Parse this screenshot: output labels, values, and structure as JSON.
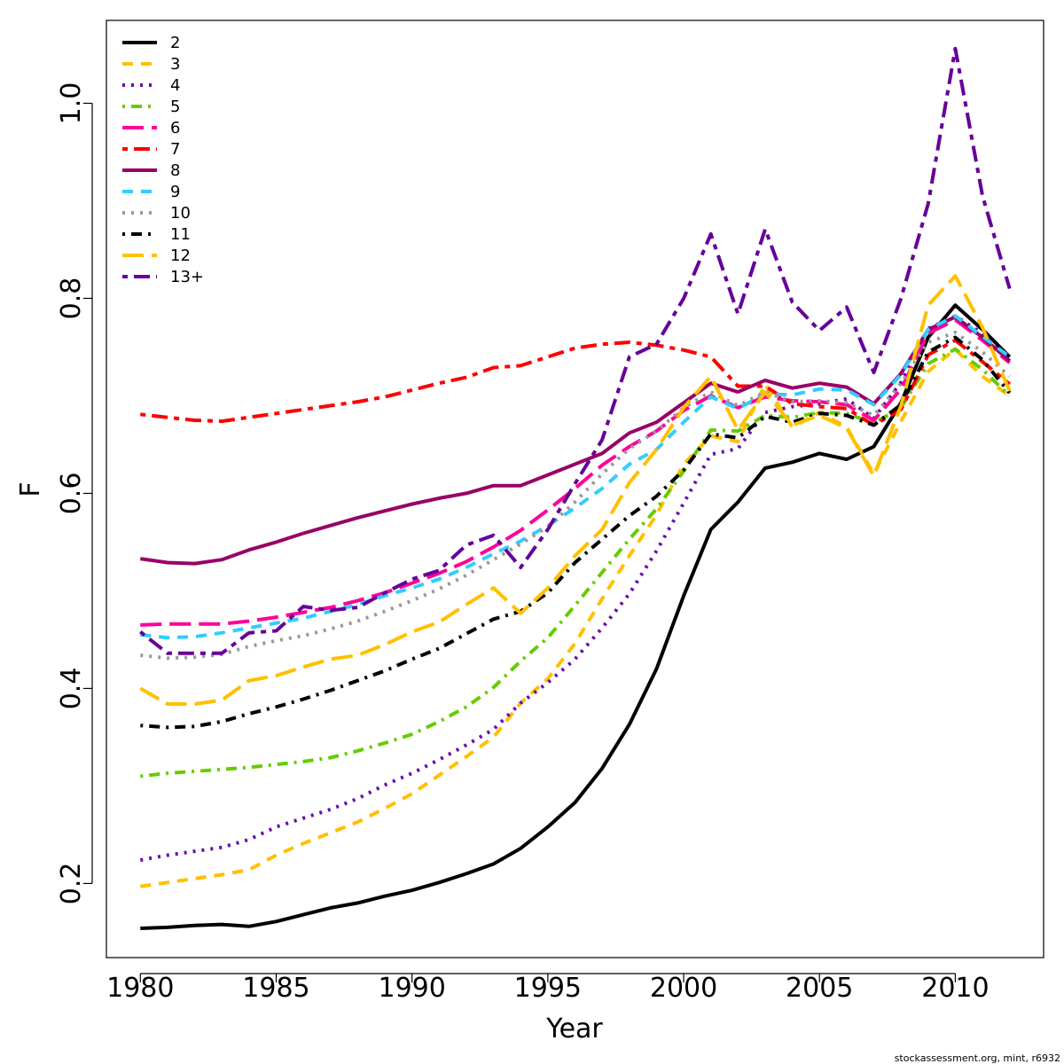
{
  "chart_data": {
    "type": "line",
    "title": "",
    "xlabel": "Year",
    "ylabel": "F",
    "xlim": [
      1978.75,
      1976.15
    ],
    "ylim": [
      0.124,
      1.085
    ],
    "x_ticks": [
      1980,
      1985,
      1990,
      1995,
      2000,
      2005,
      2010
    ],
    "y_ticks": [
      0.2,
      0.4,
      0.6,
      0.8,
      1.0
    ],
    "x_tick_labels": [
      "1980",
      "1985",
      "1990",
      "1995",
      "2000",
      "2005",
      "2010"
    ],
    "y_tick_labels": [
      "0.2",
      "0.4",
      "0.6",
      "0.8",
      "1.0"
    ],
    "legend_position": "top-left",
    "x": [
      1980,
      1981,
      1982,
      1983,
      1984,
      1985,
      1986,
      1987,
      1988,
      1989,
      1990,
      1991,
      1992,
      1993,
      1994,
      1995,
      1996,
      1997,
      1998,
      1999,
      2000,
      2001,
      2002,
      2003,
      2004,
      2005,
      2006,
      2007,
      2008,
      2009,
      2010,
      2011,
      2012
    ],
    "series": [
      {
        "name": "2",
        "color": "#000000",
        "dash": "solid",
        "values": [
          0.154,
          0.155,
          0.157,
          0.158,
          0.156,
          0.161,
          0.168,
          0.175,
          0.18,
          0.187,
          0.193,
          0.201,
          0.21,
          0.22,
          0.236,
          0.258,
          0.283,
          0.318,
          0.363,
          0.42,
          0.495,
          0.563,
          0.591,
          0.626,
          0.632,
          0.641,
          0.635,
          0.648,
          0.693,
          0.76,
          0.793,
          0.768,
          0.74
        ]
      },
      {
        "name": "3",
        "color": "#ffc000",
        "dash": "dashed",
        "values": [
          0.197,
          0.201,
          0.205,
          0.209,
          0.214,
          0.229,
          0.241,
          0.252,
          0.263,
          0.277,
          0.292,
          0.311,
          0.33,
          0.35,
          0.385,
          0.41,
          0.446,
          0.492,
          0.536,
          0.578,
          0.63,
          0.659,
          0.653,
          0.712,
          0.668,
          0.683,
          0.668,
          0.62,
          0.674,
          0.725,
          0.748,
          0.72,
          0.7
        ]
      },
      {
        "name": "4",
        "color": "#6a0dad",
        "dash": "dotted",
        "values": [
          0.224,
          0.229,
          0.233,
          0.237,
          0.245,
          0.258,
          0.267,
          0.276,
          0.287,
          0.301,
          0.313,
          0.327,
          0.342,
          0.358,
          0.385,
          0.406,
          0.43,
          0.462,
          0.497,
          0.541,
          0.59,
          0.64,
          0.646,
          0.683,
          0.689,
          0.692,
          0.697,
          0.677,
          0.714,
          0.769,
          0.782,
          0.764,
          0.735
        ]
      },
      {
        "name": "5",
        "color": "#66cc00",
        "dash": "dashdot",
        "values": [
          0.31,
          0.313,
          0.315,
          0.317,
          0.319,
          0.322,
          0.325,
          0.329,
          0.336,
          0.344,
          0.353,
          0.366,
          0.381,
          0.401,
          0.428,
          0.452,
          0.485,
          0.519,
          0.553,
          0.584,
          0.623,
          0.665,
          0.664,
          0.68,
          0.678,
          0.683,
          0.682,
          0.672,
          0.688,
          0.733,
          0.748,
          0.727,
          0.7
        ]
      },
      {
        "name": "6",
        "color": "#ff0099",
        "dash": "longdash",
        "values": [
          0.465,
          0.466,
          0.466,
          0.466,
          0.469,
          0.473,
          0.478,
          0.483,
          0.49,
          0.498,
          0.508,
          0.518,
          0.53,
          0.545,
          0.562,
          0.583,
          0.605,
          0.629,
          0.648,
          0.664,
          0.685,
          0.7,
          0.688,
          0.699,
          0.695,
          0.694,
          0.691,
          0.675,
          0.707,
          0.764,
          0.778,
          0.757,
          0.734
        ]
      },
      {
        "name": "7",
        "color": "#ff0000",
        "dash": "twodash",
        "values": [
          0.681,
          0.678,
          0.675,
          0.674,
          0.678,
          0.682,
          0.686,
          0.69,
          0.694,
          0.699,
          0.706,
          0.713,
          0.719,
          0.729,
          0.731,
          0.74,
          0.749,
          0.753,
          0.755,
          0.752,
          0.747,
          0.74,
          0.71,
          0.71,
          0.692,
          0.689,
          0.687,
          0.67,
          0.686,
          0.742,
          0.757,
          0.735,
          0.712
        ]
      },
      {
        "name": "8",
        "color": "#990066",
        "dash": "solid",
        "values": [
          0.533,
          0.529,
          0.528,
          0.532,
          0.542,
          0.55,
          0.559,
          0.567,
          0.575,
          0.582,
          0.589,
          0.595,
          0.6,
          0.608,
          0.608,
          0.619,
          0.63,
          0.641,
          0.662,
          0.673,
          0.693,
          0.713,
          0.704,
          0.716,
          0.708,
          0.713,
          0.709,
          0.692,
          0.723,
          0.768,
          0.781,
          0.76,
          0.736
        ]
      },
      {
        "name": "9",
        "color": "#33ccff",
        "dash": "dashed",
        "values": [
          0.455,
          0.452,
          0.453,
          0.457,
          0.462,
          0.467,
          0.472,
          0.479,
          0.486,
          0.495,
          0.503,
          0.512,
          0.524,
          0.538,
          0.551,
          0.567,
          0.585,
          0.605,
          0.63,
          0.645,
          0.673,
          0.699,
          0.687,
          0.702,
          0.701,
          0.707,
          0.706,
          0.691,
          0.722,
          0.768,
          0.782,
          0.761,
          0.74
        ]
      },
      {
        "name": "10",
        "color": "#999999",
        "dash": "dotted",
        "values": [
          0.434,
          0.431,
          0.432,
          0.435,
          0.443,
          0.449,
          0.454,
          0.461,
          0.469,
          0.479,
          0.49,
          0.502,
          0.516,
          0.532,
          0.548,
          0.566,
          0.591,
          0.62,
          0.646,
          0.664,
          0.688,
          0.704,
          0.69,
          0.704,
          0.694,
          0.695,
          0.693,
          0.68,
          0.713,
          0.755,
          0.765,
          0.745,
          0.72
        ]
      },
      {
        "name": "11",
        "color": "#000000",
        "dash": "dashdot",
        "values": [
          0.362,
          0.36,
          0.361,
          0.366,
          0.374,
          0.381,
          0.389,
          0.398,
          0.408,
          0.418,
          0.43,
          0.441,
          0.456,
          0.471,
          0.479,
          0.498,
          0.529,
          0.553,
          0.577,
          0.597,
          0.624,
          0.661,
          0.657,
          0.679,
          0.673,
          0.682,
          0.68,
          0.67,
          0.691,
          0.745,
          0.76,
          0.737,
          0.703
        ]
      },
      {
        "name": "12",
        "color": "#ffc000",
        "dash": "longdash",
        "values": [
          0.4,
          0.384,
          0.384,
          0.388,
          0.408,
          0.413,
          0.422,
          0.43,
          0.434,
          0.445,
          0.458,
          0.468,
          0.486,
          0.503,
          0.477,
          0.503,
          0.536,
          0.563,
          0.611,
          0.645,
          0.688,
          0.72,
          0.665,
          0.704,
          0.67,
          0.68,
          0.667,
          0.618,
          0.69,
          0.793,
          0.823,
          0.77,
          0.705
        ]
      },
      {
        "name": "13+",
        "color": "#660099",
        "dash": "twodash",
        "values": [
          0.458,
          0.436,
          0.436,
          0.436,
          0.457,
          0.459,
          0.484,
          0.48,
          0.483,
          0.498,
          0.512,
          0.521,
          0.547,
          0.557,
          0.524,
          0.563,
          0.61,
          0.655,
          0.74,
          0.753,
          0.8,
          0.866,
          0.784,
          0.871,
          0.796,
          0.767,
          0.791,
          0.724,
          0.8,
          0.897,
          1.056,
          0.905,
          0.81
        ]
      }
    ]
  },
  "watermark": "stockassessment.org, mint, r6932"
}
